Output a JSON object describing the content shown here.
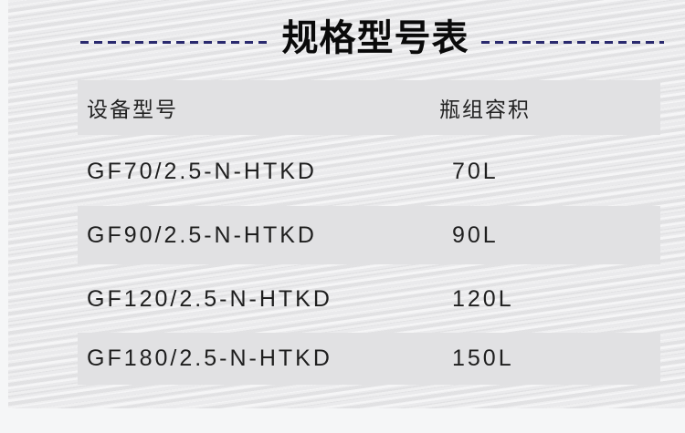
{
  "title": "规格型号表",
  "table": {
    "headers": [
      "设备型号",
      "瓶组容积"
    ],
    "rows": [
      {
        "model": "GF70/2.5-N-HTKD",
        "volume": "70L"
      },
      {
        "model": "GF90/2.5-N-HTKD",
        "volume": "90L"
      },
      {
        "model": "GF120/2.5-N-HTKD",
        "volume": "120L"
      },
      {
        "model": "GF180/2.5-N-HTKD",
        "volume": "150L"
      }
    ]
  },
  "colors": {
    "dash": "#2a2a6e",
    "row_shade": "#e1e1e3"
  }
}
